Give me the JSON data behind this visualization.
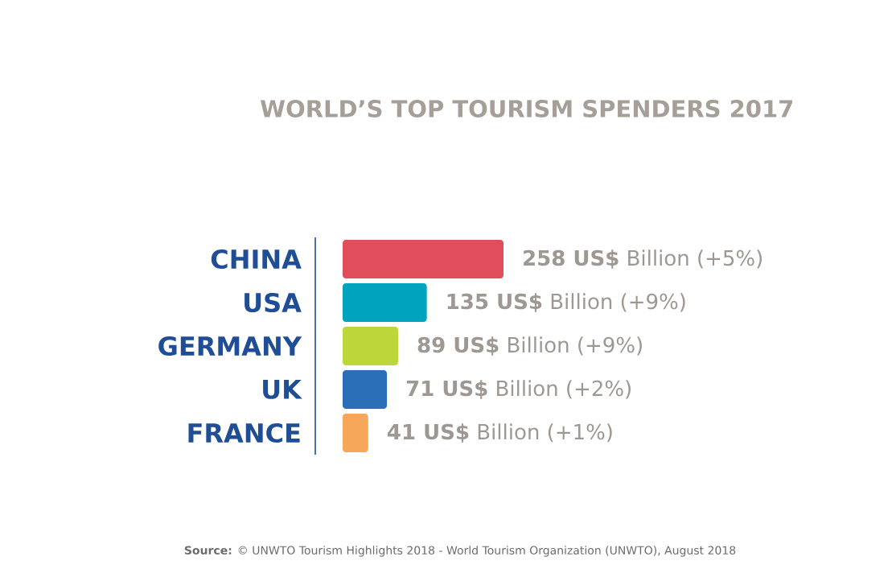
{
  "chart_data": {
    "type": "bar",
    "orientation": "horizontal",
    "title": "WORLD’S TOP TOURISM SPENDERS 2017",
    "categories": [
      "CHINA",
      "USA",
      "GERMANY",
      "UK",
      "FRANCE"
    ],
    "values": [
      258,
      135,
      89,
      71,
      41
    ],
    "colors": [
      "#e04e5c",
      "#00a3be",
      "#bdd63a",
      "#2a6fb8",
      "#f7a75a"
    ],
    "xlim": [
      0,
      258
    ],
    "value_labels": [
      "**258 US$** Billion (+5%)",
      "**135 US$** Billion (+9%)",
      "**89 US$** Billion (+9%)",
      "**71 US$** Billion (+2%)",
      "**41 US$** Billion (+1%)"
    ],
    "annotations": [
      "**Source:** © UNWTO Tourism Highlights 2018 - World Tourism Organization (UNWTO), August 2018"
    ]
  }
}
